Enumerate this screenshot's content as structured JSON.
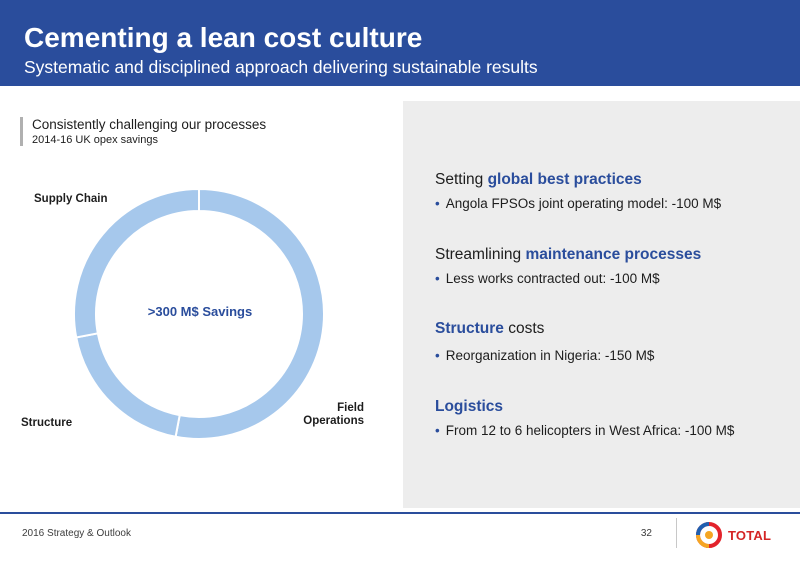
{
  "header": {
    "title": "Cementing a lean cost culture",
    "subtitle": "Systematic and disciplined approach delivering sustainable results"
  },
  "left": {
    "section_title": "Consistently challenging our processes",
    "section_subtitle": "2014-16 UK opex savings"
  },
  "chart_data": {
    "type": "pie",
    "title": "",
    "center_label": ">300 M$ Savings",
    "categories": [
      "Field Operations",
      "Structure",
      "Supply Chain"
    ],
    "values": [
      53,
      19,
      28
    ],
    "colors": [
      "#a6c8ec",
      "#a6c8ec",
      "#a6c8ec"
    ],
    "segment_labels": {
      "supply": "Supply Chain",
      "structure": "Structure",
      "field_line1": "Field",
      "field_line2": "Operations"
    }
  },
  "right": {
    "items": [
      {
        "heading_plain": "Setting ",
        "heading_bold": "global best practices",
        "heading_after": "",
        "bullet": "Angola FPSOs joint operating model: -100 M$"
      },
      {
        "heading_plain": "Streamlining ",
        "heading_bold": "maintenance processes",
        "heading_after": "",
        "bullet": "Less works contracted out: -100 M$"
      },
      {
        "heading_plain": "",
        "heading_bold": "Structure",
        "heading_after": " costs",
        "bullet": "Reorganization in Nigeria: -150 M$"
      },
      {
        "heading_plain": "",
        "heading_bold": "Logistics",
        "heading_after": "",
        "bullet": "From 12 to 6 helicopters in West Africa: -100 M$"
      }
    ],
    "bullet_symbol": "•"
  },
  "footer": {
    "left_text": "2016 Strategy & Outlook",
    "page_number": "32",
    "logo_text": "TOTAL",
    "logo_icon": "total-logo-icon"
  }
}
